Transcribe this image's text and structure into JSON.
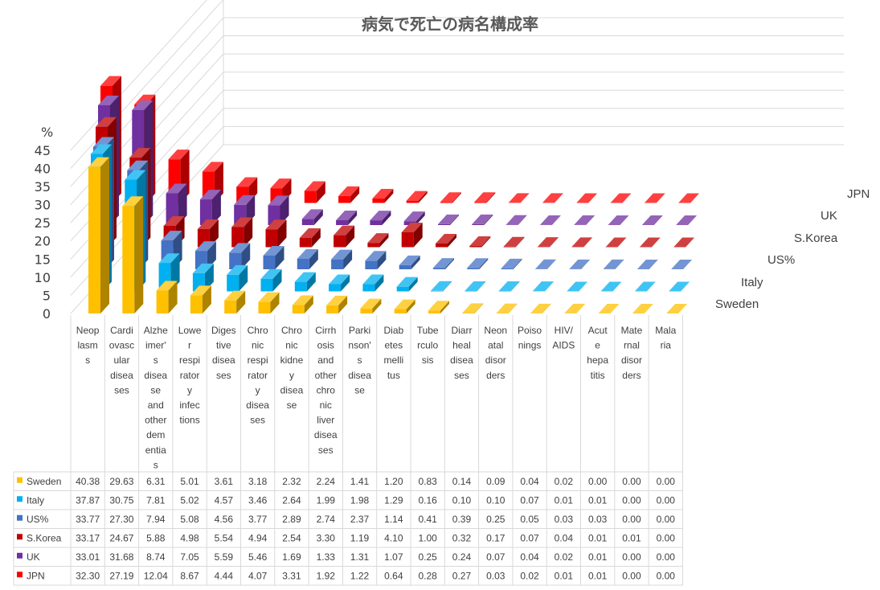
{
  "chart_data": {
    "type": "bar",
    "title": "病気で死亡の病名構成率",
    "ylabel": "%",
    "ylim": [
      0,
      45
    ],
    "yticks": [
      0,
      5,
      10,
      15,
      20,
      25,
      30,
      35,
      40,
      45
    ],
    "grid": true,
    "legend": "table-left",
    "categories": [
      "Neoplasms",
      "Cardiovascular diseases",
      "Alzheimer's disease and other dementias",
      "Lower respiratory infections",
      "Digestive diseases",
      "Chronic respiratory diseases",
      "Chronic kidney disease",
      "Cirrhosis and other chronic liver diseases",
      "Parkinson's disease",
      "Diabetes mellitus",
      "Tuberculosis",
      "Diarrheal diseases",
      "Neonatal disorders",
      "Poisonings",
      "HIV/AIDS",
      "Acute hepatitis",
      "Maternal disorders",
      "Malaria"
    ],
    "category_lines": [
      [
        "Neop",
        "lasm",
        "s"
      ],
      [
        "Cardi",
        "ovasc",
        "ular",
        "disea",
        "ses"
      ],
      [
        "Alzhe",
        "imer'",
        "s",
        "disea",
        "se",
        "and",
        "other",
        "dem",
        "entia",
        "s"
      ],
      [
        "Lowe",
        "r",
        "respi",
        "rator",
        "y",
        "infec",
        "tions"
      ],
      [
        "Diges",
        "tive",
        "disea",
        "ses"
      ],
      [
        "Chro",
        "nic",
        "respi",
        "rator",
        "y",
        "disea",
        "ses"
      ],
      [
        "Chro",
        "nic",
        "kidne",
        "y",
        "disea",
        "se"
      ],
      [
        "Cirrh",
        "osis",
        "and",
        "other",
        "chro",
        "nic",
        "liver",
        "disea",
        "ses"
      ],
      [
        "Parki",
        "nson'",
        "s",
        "disea",
        "se"
      ],
      [
        "Diab",
        "etes",
        "melli",
        "tus"
      ],
      [
        "Tube",
        "rculo",
        "sis"
      ],
      [
        "Diarr",
        "heal",
        "disea",
        "ses"
      ],
      [
        "Neon",
        "atal",
        "disor",
        "ders"
      ],
      [
        "Poiso",
        "nings"
      ],
      [
        "HIV/",
        "AIDS"
      ],
      [
        "Acut",
        "e",
        "hepa",
        "titis"
      ],
      [
        "Mate",
        "rnal",
        "disor",
        "ders"
      ],
      [
        "Mala",
        "ria"
      ]
    ],
    "series": [
      {
        "name": "Sweden",
        "color": "#FFC000",
        "values": [
          40.38,
          29.63,
          6.31,
          5.01,
          3.61,
          3.18,
          2.32,
          2.24,
          1.41,
          1.2,
          0.83,
          0.14,
          0.09,
          0.04,
          0.02,
          0.0,
          0.0,
          0.0
        ],
        "labels": [
          "40.38",
          "29.63",
          "6.31",
          "5.01",
          "3.61",
          "3.18",
          "2.32",
          "2.24",
          "1.41",
          "1.20",
          "0.83",
          "0.14",
          "0.09",
          "0.04",
          "0.02",
          "0.00",
          "0.00",
          "0.00"
        ]
      },
      {
        "name": "Italy",
        "color": "#00B0F0",
        "values": [
          37.87,
          30.75,
          7.81,
          5.02,
          4.57,
          3.46,
          2.64,
          1.99,
          1.98,
          1.29,
          0.16,
          0.1,
          0.1,
          0.07,
          0.01,
          0.01,
          0.0,
          0.0
        ],
        "labels": [
          "37.87",
          "30.75",
          "7.81",
          "5.02",
          "4.57",
          "3.46",
          "2.64",
          "1.99",
          "1.98",
          "1.29",
          "0.16",
          "0.10",
          "0.10",
          "0.07",
          "0.01",
          "0.01",
          "0.00",
          "0.00"
        ]
      },
      {
        "name": "US%",
        "color": "#4472C4",
        "values": [
          33.77,
          27.3,
          7.94,
          5.08,
          4.56,
          3.77,
          2.89,
          2.74,
          2.37,
          1.14,
          0.41,
          0.39,
          0.25,
          0.05,
          0.03,
          0.03,
          0.0,
          0.0
        ],
        "labels": [
          "33.77",
          "27.30",
          "7.94",
          "5.08",
          "4.56",
          "3.77",
          "2.89",
          "2.74",
          "2.37",
          "1.14",
          "0.41",
          "0.39",
          "0.25",
          "0.05",
          "0.03",
          "0.03",
          "0.00",
          "0.00"
        ]
      },
      {
        "name": "S.Korea",
        "color": "#C00000",
        "values": [
          33.17,
          24.67,
          5.88,
          4.98,
          5.54,
          4.94,
          2.54,
          3.3,
          1.19,
          4.1,
          1.0,
          0.32,
          0.17,
          0.07,
          0.04,
          0.01,
          0.01,
          0.0
        ],
        "labels": [
          "33.17",
          "24.67",
          "5.88",
          "4.98",
          "5.54",
          "4.94",
          "2.54",
          "3.30",
          "1.19",
          "4.10",
          "1.00",
          "0.32",
          "0.17",
          "0.07",
          "0.04",
          "0.01",
          "0.01",
          "0.00"
        ]
      },
      {
        "name": "UK",
        "color": "#7030A0",
        "values": [
          33.01,
          31.68,
          8.74,
          7.05,
          5.59,
          5.46,
          1.69,
          1.33,
          1.31,
          1.07,
          0.25,
          0.24,
          0.07,
          0.04,
          0.02,
          0.01,
          0.0,
          0.0
        ],
        "labels": [
          "33.01",
          "31.68",
          "8.74",
          "7.05",
          "5.59",
          "5.46",
          "1.69",
          "1.33",
          "1.31",
          "1.07",
          "0.25",
          "0.24",
          "0.07",
          "0.04",
          "0.02",
          "0.01",
          "0.00",
          "0.00"
        ]
      },
      {
        "name": "JPN",
        "color": "#FF0000",
        "values": [
          32.3,
          27.19,
          12.04,
          8.67,
          4.44,
          4.07,
          3.31,
          1.92,
          1.22,
          0.64,
          0.28,
          0.27,
          0.03,
          0.02,
          0.01,
          0.01,
          0.0,
          0.0
        ],
        "labels": [
          "32.30",
          "27.19",
          "12.04",
          "8.67",
          "4.44",
          "4.07",
          "3.31",
          "1.92",
          "1.22",
          "0.64",
          "0.28",
          "0.27",
          "0.03",
          "0.02",
          "0.01",
          "0.01",
          "0.00",
          "0.00"
        ]
      }
    ]
  }
}
